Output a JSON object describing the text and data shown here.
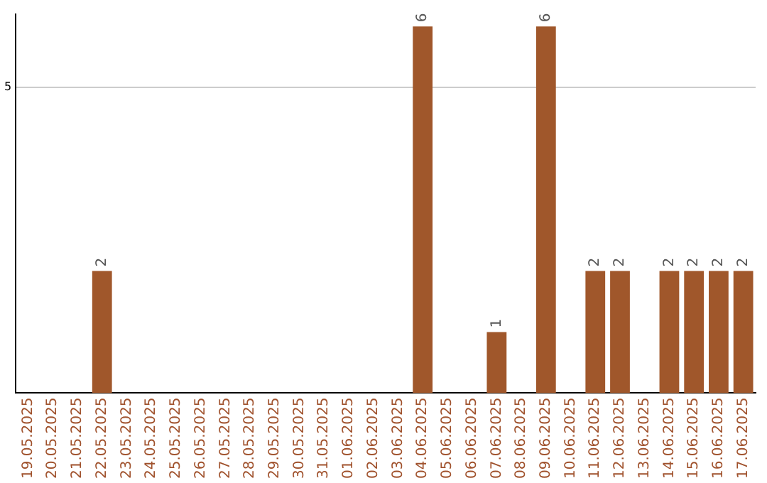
{
  "chart_data": {
    "type": "bar",
    "categories": [
      "19.05.2025",
      "20.05.2025",
      "21.05.2025",
      "22.05.2025",
      "23.05.2025",
      "24.05.2025",
      "25.05.2025",
      "26.05.2025",
      "27.05.2025",
      "28.05.2025",
      "29.05.2025",
      "30.05.2025",
      "31.05.2025",
      "01.06.2025",
      "02.06.2025",
      "03.06.2025",
      "04.06.2025",
      "05.06.2025",
      "06.06.2025",
      "07.06.2025",
      "08.06.2025",
      "09.06.2025",
      "10.06.2025",
      "11.06.2025",
      "12.06.2025",
      "13.06.2025",
      "14.06.2025",
      "15.06.2025",
      "16.06.2025",
      "17.06.2025"
    ],
    "values": [
      0,
      0,
      0,
      2,
      0,
      0,
      0,
      0,
      0,
      0,
      0,
      0,
      0,
      0,
      0,
      0,
      6,
      0,
      0,
      1,
      0,
      6,
      0,
      2,
      2,
      0,
      2,
      2,
      2,
      2
    ],
    "value_labels": [
      null,
      null,
      null,
      "2",
      null,
      null,
      null,
      null,
      null,
      null,
      null,
      null,
      null,
      null,
      null,
      null,
      "6",
      null,
      null,
      "1",
      null,
      "6",
      null,
      "2",
      "2",
      null,
      "2",
      "2",
      "2",
      "2"
    ],
    "color": "#a0572b",
    "ylim": [
      0,
      6.2
    ],
    "yticks": [
      5
    ],
    "grid": "y"
  }
}
